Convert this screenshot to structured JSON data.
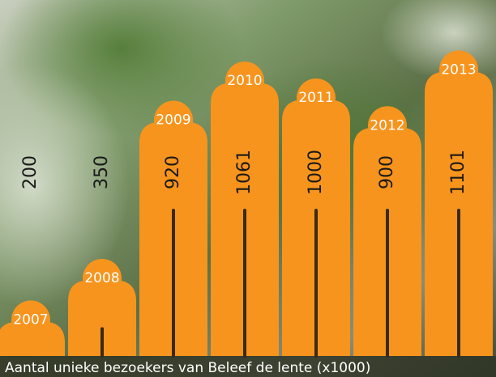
{
  "chart_data": {
    "type": "bar",
    "title": "Aantal unieke bezoekers van Beleef de lente (x1000)",
    "categories": [
      "2007",
      "2008",
      "2009",
      "2010",
      "2011",
      "2012",
      "2013"
    ],
    "values": [
      200,
      350,
      920,
      1061,
      1000,
      900,
      1101
    ],
    "color": "#f7941d"
  }
}
